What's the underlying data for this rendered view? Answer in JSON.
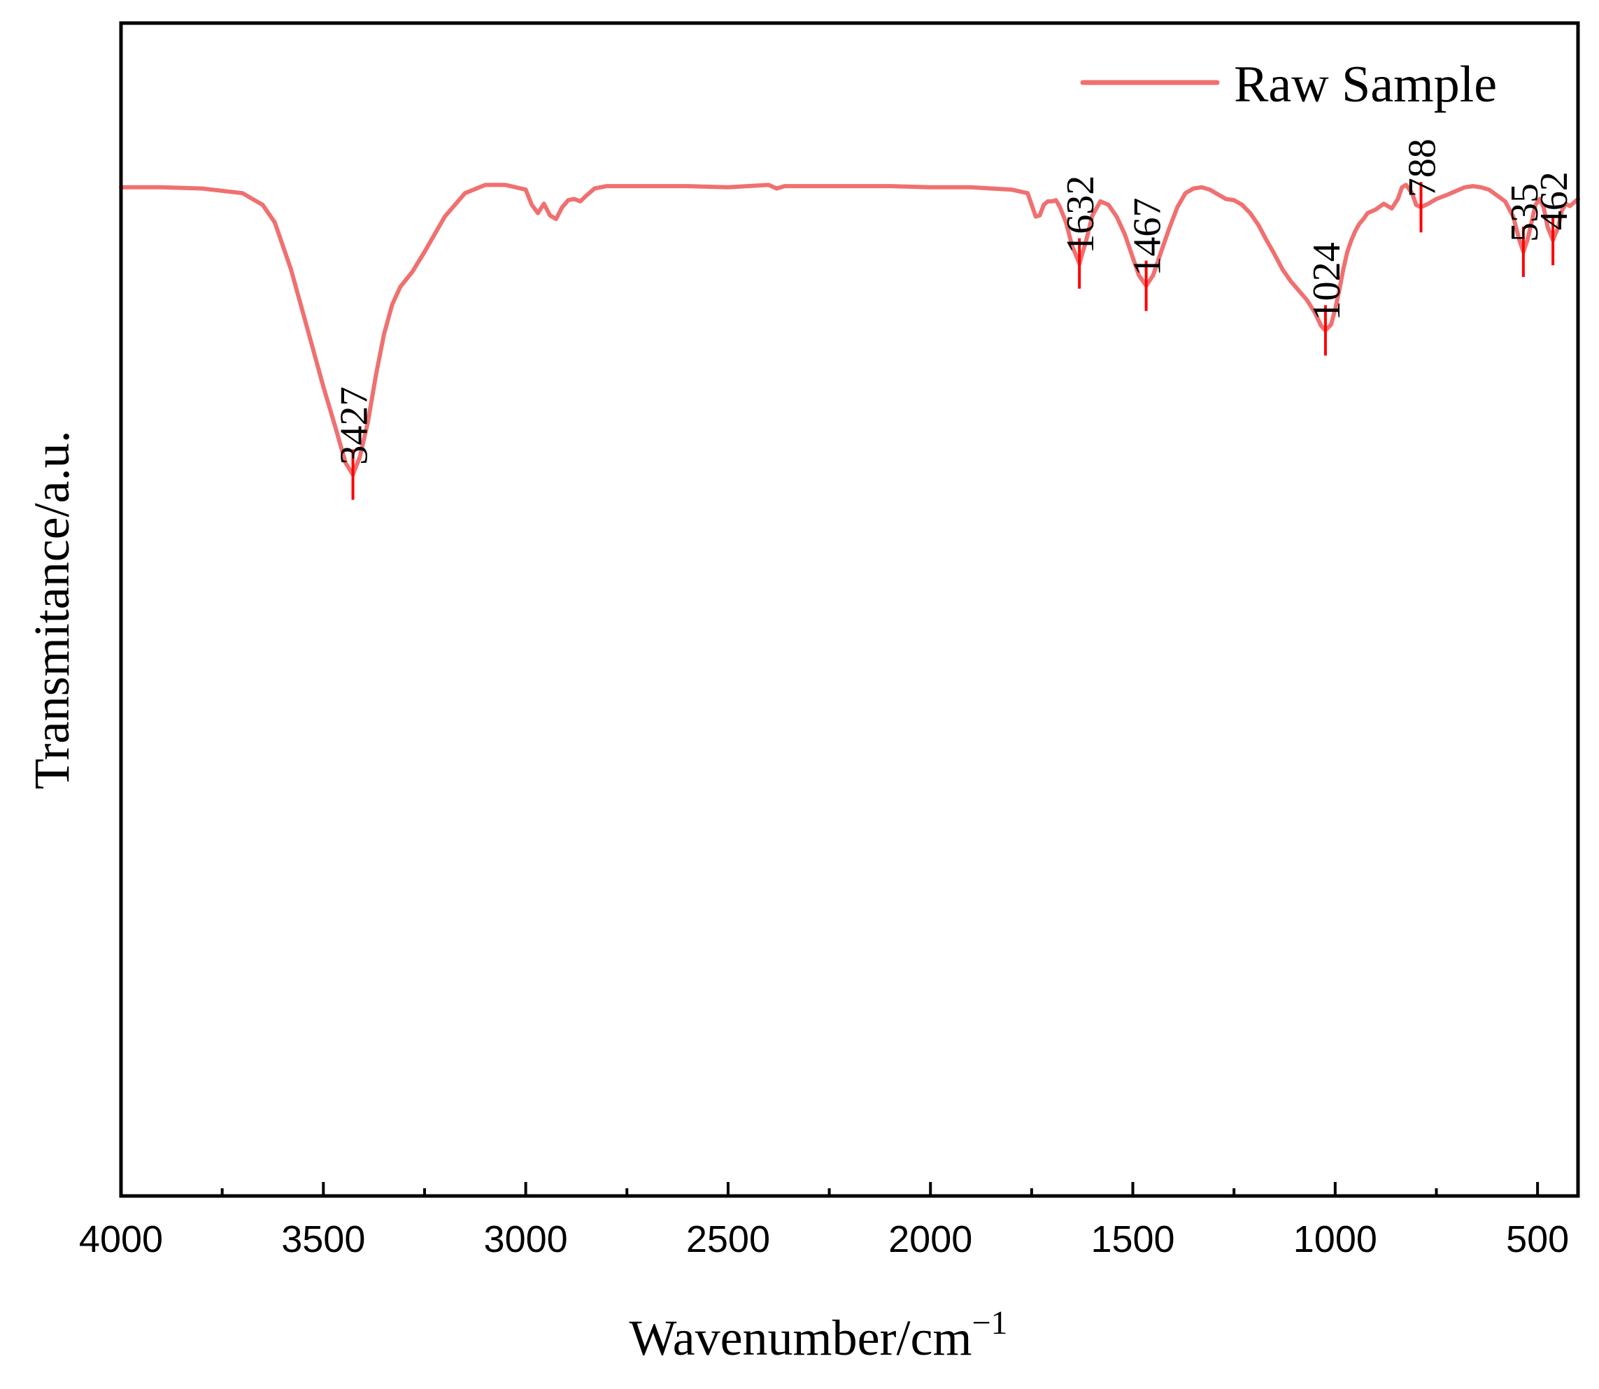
{
  "chart_data": {
    "type": "line",
    "title": "",
    "xlabel": "Wavenumber/cm",
    "xlabel_superscript": "−1",
    "ylabel": "Transmitance/a.u.",
    "xlim": [
      4000,
      400
    ],
    "ylim": [
      0,
      100
    ],
    "x_ticks": [
      4000,
      3500,
      3000,
      2500,
      2000,
      1500,
      1000,
      500
    ],
    "x_tick_labels": [
      "4000",
      "3500",
      "3000",
      "2500",
      "2000",
      "1500",
      "1000",
      "500"
    ],
    "minor_ticks": [
      3750,
      3250,
      2750,
      2250,
      1750,
      1250,
      750
    ],
    "legend": {
      "position": "top-right",
      "entries": [
        "Raw Sample"
      ]
    },
    "colors": {
      "series": "#f07070",
      "marker": "#ff0000",
      "axis": "#000000"
    },
    "series": [
      {
        "name": "Raw Sample",
        "x": [
          4000,
          3900,
          3800,
          3700,
          3650,
          3620,
          3580,
          3540,
          3500,
          3470,
          3445,
          3427,
          3410,
          3390,
          3370,
          3350,
          3330,
          3310,
          3280,
          3250,
          3200,
          3150,
          3100,
          3050,
          3000,
          2985,
          2970,
          2955,
          2940,
          2925,
          2910,
          2895,
          2880,
          2865,
          2850,
          2830,
          2800,
          2700,
          2600,
          2500,
          2400,
          2380,
          2360,
          2300,
          2200,
          2100,
          2000,
          1900,
          1800,
          1760,
          1750,
          1740,
          1730,
          1720,
          1710,
          1700,
          1690,
          1680,
          1665,
          1650,
          1632,
          1615,
          1600,
          1580,
          1560,
          1540,
          1520,
          1500,
          1485,
          1467,
          1450,
          1430,
          1410,
          1390,
          1370,
          1350,
          1330,
          1310,
          1290,
          1270,
          1250,
          1230,
          1210,
          1190,
          1170,
          1150,
          1130,
          1110,
          1090,
          1070,
          1050,
          1035,
          1024,
          1010,
          1000,
          990,
          980,
          970,
          960,
          950,
          940,
          930,
          920,
          900,
          880,
          860,
          845,
          835,
          825,
          810,
          800,
          788,
          770,
          750,
          720,
          700,
          680,
          660,
          640,
          620,
          600,
          580,
          560,
          545,
          535,
          525,
          515,
          505,
          495,
          485,
          475,
          462,
          450,
          440,
          430,
          420,
          410,
          400
        ],
        "y": [
          86,
          86,
          85.9,
          85.5,
          84.5,
          83,
          79,
          74,
          69,
          65.5,
          62.5,
          61.5,
          63,
          66,
          70,
          73.5,
          76,
          77.5,
          78.8,
          80.5,
          83.5,
          85.5,
          86.2,
          86.2,
          85.8,
          84.5,
          83.8,
          84.6,
          83.6,
          83.3,
          84.3,
          84.9,
          85,
          84.8,
          85.3,
          85.9,
          86.1,
          86.1,
          86.1,
          86,
          86.2,
          85.9,
          86.1,
          86.1,
          86.1,
          86.1,
          86,
          86,
          85.8,
          85.5,
          84.5,
          83.5,
          83.6,
          84.5,
          84.8,
          84.8,
          84.9,
          84.3,
          83,
          81,
          79.5,
          81.5,
          83.6,
          84.8,
          84.5,
          83.5,
          82,
          80,
          78.5,
          77.6,
          78.5,
          80.5,
          82.5,
          84.3,
          85.5,
          85.9,
          86,
          85.8,
          85.4,
          85,
          84.9,
          84.5,
          83.8,
          82.8,
          81.5,
          80.3,
          79,
          78,
          77.2,
          76.4,
          75.3,
          74.2,
          73.8,
          74.3,
          75.6,
          77.2,
          79,
          80.5,
          81.5,
          82.3,
          82.9,
          83.3,
          83.8,
          84.1,
          84.6,
          84.2,
          85,
          86,
          86.2,
          85.5,
          84.5,
          84.3,
          84.6,
          85,
          85.4,
          85.7,
          86,
          86.1,
          86,
          85.8,
          85.3,
          84.8,
          83.5,
          81.5,
          80.5,
          81.5,
          83,
          84.5,
          85,
          84.3,
          82.6,
          81.5,
          82.5,
          84,
          84.6,
          84.4,
          84.7,
          85
        ]
      }
    ],
    "peaks": [
      {
        "label": "3427",
        "x": 3427,
        "y": 61.5
      },
      {
        "label": "1632",
        "x": 1632,
        "y": 79.5
      },
      {
        "label": "1467",
        "x": 1467,
        "y": 77.6
      },
      {
        "label": "1024",
        "x": 1024,
        "y": 73.8
      },
      {
        "label": "788",
        "x": 788,
        "y": 84.3
      },
      {
        "label": "535",
        "x": 535,
        "y": 80.5
      },
      {
        "label": "462",
        "x": 462,
        "y": 81.5
      }
    ]
  }
}
